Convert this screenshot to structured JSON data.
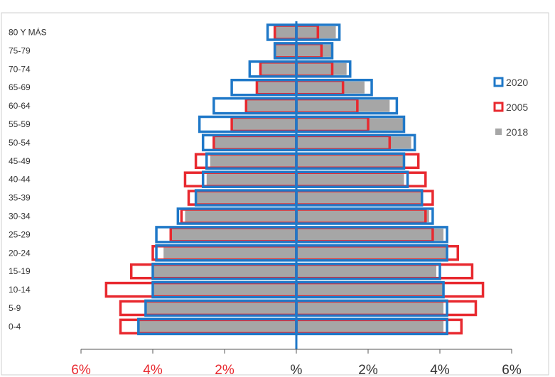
{
  "chart_data": {
    "type": "bar",
    "title": "",
    "xlabel": "",
    "ylabel": "",
    "orientation": "horizontal",
    "stacking": "population-pyramid",
    "categories": [
      "80 Y MÁS",
      "75-79",
      "70-74",
      "65-69",
      "60-64",
      "55-59",
      "50-54",
      "45-49",
      "40-44",
      "35-39",
      "30-34",
      "25-29",
      "20-24",
      "15-19",
      "10-14",
      "5-9",
      "0-4"
    ],
    "xlim": [
      -6,
      6
    ],
    "x_ticks": [
      {
        "value": -6,
        "label": "6%",
        "color": "#e8292f"
      },
      {
        "value": -4,
        "label": "4%",
        "color": "#e8292f"
      },
      {
        "value": -2,
        "label": "2%",
        "color": "#e8292f"
      },
      {
        "value": 0,
        "label": "%",
        "color": "#333333"
      },
      {
        "value": 2,
        "label": "2%",
        "color": "#333333"
      },
      {
        "value": 4,
        "label": "4%",
        "color": "#333333"
      },
      {
        "value": 6,
        "label": "6%",
        "color": "#333333"
      }
    ],
    "series": [
      {
        "name": "2018",
        "style": "gray-fill",
        "color": "#a6a6a6",
        "left": [
          0.6,
          0.6,
          1.0,
          1.1,
          1.4,
          1.8,
          2.3,
          2.4,
          2.5,
          2.8,
          3.1,
          3.5,
          3.7,
          4.0,
          4.0,
          4.2,
          4.4
        ],
        "right": [
          1.1,
          1.0,
          1.4,
          1.9,
          2.6,
          3.0,
          3.2,
          3.0,
          3.0,
          3.5,
          3.7,
          4.1,
          4.2,
          3.9,
          4.1,
          4.1,
          4.1
        ]
      },
      {
        "name": "2020",
        "style": "blue-outline",
        "color": "#1f78c8",
        "left": [
          0.8,
          0.6,
          1.3,
          1.8,
          2.3,
          2.7,
          2.6,
          2.5,
          2.6,
          2.8,
          3.3,
          3.9,
          3.9,
          4.0,
          4.0,
          4.2,
          4.4
        ],
        "right": [
          1.2,
          1.0,
          1.5,
          2.1,
          2.8,
          3.0,
          3.3,
          3.0,
          3.1,
          3.5,
          3.8,
          4.2,
          4.2,
          4.0,
          4.1,
          4.2,
          4.2
        ]
      },
      {
        "name": "2005",
        "style": "red-outline",
        "color": "#e8292f",
        "left": [
          0.6,
          0.6,
          1.0,
          1.1,
          1.4,
          1.8,
          2.3,
          2.8,
          3.1,
          3.0,
          3.2,
          3.5,
          4.0,
          4.6,
          5.3,
          4.9,
          4.9
        ],
        "right": [
          0.6,
          0.7,
          1.0,
          1.3,
          1.7,
          2.0,
          2.6,
          3.4,
          3.6,
          3.8,
          3.6,
          3.8,
          4.5,
          4.9,
          5.2,
          5.0,
          4.6
        ]
      }
    ],
    "legend": {
      "position": "right",
      "entries": [
        {
          "label": "2020",
          "color": "#1f78c8",
          "style": "blue-outline"
        },
        {
          "label": "2005",
          "color": "#e8292f",
          "style": "red-outline"
        },
        {
          "label": "2018",
          "color": "#a6a6a6",
          "style": "gray-fill"
        }
      ]
    },
    "grid": false
  }
}
